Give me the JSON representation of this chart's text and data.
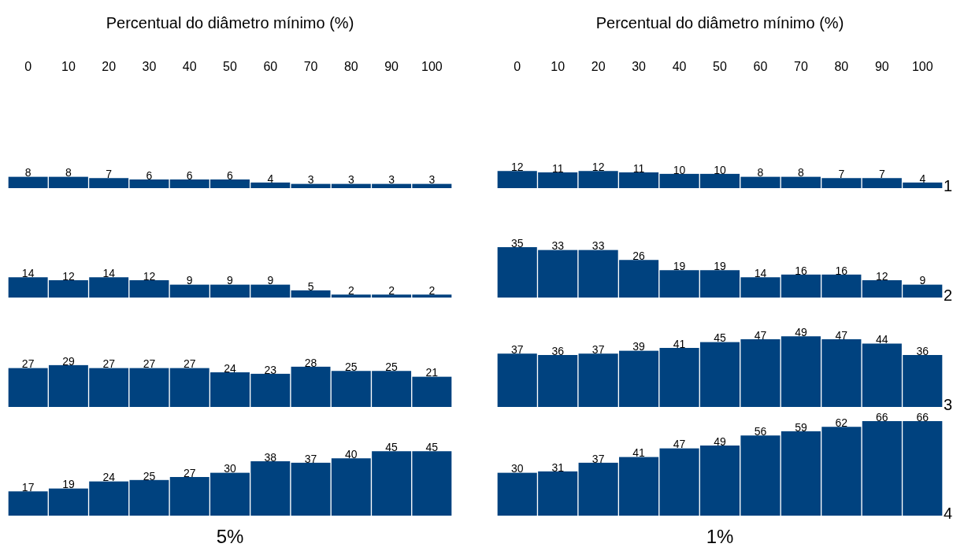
{
  "chart_data": [
    {
      "type": "bar",
      "xlabel": "Percentual do diâmetro mínimo (%)",
      "categories": [
        "0",
        "10",
        "20",
        "30",
        "40",
        "50",
        "60",
        "70",
        "80",
        "90",
        "100"
      ],
      "values": [
        8,
        8,
        7,
        6,
        6,
        6,
        4,
        3,
        3,
        3,
        3
      ],
      "color": "#00427f",
      "data_labels": true,
      "tick_labels": "x"
    },
    {
      "type": "bar",
      "xlabel": "Percentual do diâmetro mínimo (%)",
      "y2label": "1",
      "categories": [
        "0",
        "10",
        "20",
        "30",
        "40",
        "50",
        "60",
        "70",
        "80",
        "90",
        "100"
      ],
      "values": [
        12,
        11,
        12,
        11,
        10,
        10,
        8,
        8,
        7,
        7,
        4
      ],
      "color": "#00427f",
      "data_labels": true,
      "tick_labels": "x"
    },
    {
      "type": "bar",
      "categories": [
        "0",
        "10",
        "20",
        "30",
        "40",
        "50",
        "60",
        "70",
        "80",
        "90",
        "100"
      ],
      "values": [
        14,
        12,
        14,
        12,
        9,
        9,
        9,
        5,
        2,
        2,
        2
      ],
      "color": "#00427f",
      "data_labels": true,
      "tick_labels": false
    },
    {
      "type": "bar",
      "y2label": "2",
      "categories": [
        "0",
        "10",
        "20",
        "30",
        "40",
        "50",
        "60",
        "70",
        "80",
        "90",
        "100"
      ],
      "values": [
        35,
        33,
        33,
        26,
        19,
        19,
        14,
        16,
        16,
        12,
        9
      ],
      "color": "#00427f",
      "data_labels": true,
      "tick_labels": false
    },
    {
      "type": "bar",
      "categories": [
        "0",
        "10",
        "20",
        "30",
        "40",
        "50",
        "60",
        "70",
        "80",
        "90",
        "100"
      ],
      "values": [
        27,
        29,
        27,
        27,
        27,
        24,
        23,
        28,
        25,
        25,
        21
      ],
      "color": "#00427f",
      "data_labels": true,
      "tick_labels": false
    },
    {
      "type": "bar",
      "y2label": "3",
      "categories": [
        "0",
        "10",
        "20",
        "30",
        "40",
        "50",
        "60",
        "70",
        "80",
        "90",
        "100"
      ],
      "values": [
        37,
        36,
        37,
        39,
        41,
        45,
        47,
        49,
        47,
        44,
        36
      ],
      "color": "#00427f",
      "data_labels": true,
      "tick_labels": false
    },
    {
      "type": "bar",
      "xlabel": "5%",
      "categories": [
        "0",
        "10",
        "20",
        "30",
        "40",
        "50",
        "60",
        "70",
        "80",
        "90",
        "100"
      ],
      "values": [
        17,
        19,
        24,
        25,
        27,
        30,
        38,
        37,
        40,
        45,
        45
      ],
      "color": "#00427f",
      "data_labels": true,
      "tick_labels": false
    },
    {
      "type": "bar",
      "xlabel": "1%",
      "y2label": "4",
      "categories": [
        "0",
        "10",
        "20",
        "30",
        "40",
        "50",
        "60",
        "70",
        "80",
        "90",
        "100"
      ],
      "values": [
        30,
        31,
        37,
        41,
        47,
        49,
        56,
        59,
        62,
        66,
        66
      ],
      "color": "#00427f",
      "data_labels": true,
      "tick_labels": false
    }
  ]
}
